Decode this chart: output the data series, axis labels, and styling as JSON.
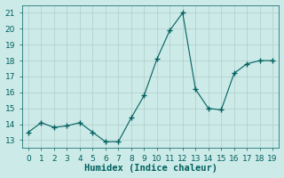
{
  "x": [
    0,
    1,
    2,
    3,
    4,
    5,
    6,
    7,
    8,
    9,
    10,
    11,
    12,
    13,
    14,
    15,
    16,
    17,
    18,
    19
  ],
  "y": [
    13.5,
    14.1,
    13.8,
    13.9,
    14.1,
    13.5,
    12.9,
    12.9,
    14.4,
    15.8,
    18.1,
    19.9,
    21.0,
    16.2,
    15.0,
    14.9,
    17.2,
    17.8,
    18.0,
    18.0
  ],
  "line_color": "#006060",
  "marker": "+",
  "bg_color": "#cceae7",
  "grid_color": "#b0ccc9",
  "xlabel": "Humidex (Indice chaleur)",
  "xlabel_fontsize": 7.5,
  "tick_color": "#006060",
  "tick_fontsize": 6.5,
  "ylim": [
    12.5,
    21.5
  ],
  "xlim": [
    -0.5,
    19.5
  ],
  "yticks": [
    13,
    14,
    15,
    16,
    17,
    18,
    19,
    20,
    21
  ],
  "xticks": [
    0,
    1,
    2,
    3,
    4,
    5,
    6,
    7,
    8,
    9,
    10,
    11,
    12,
    13,
    14,
    15,
    16,
    17,
    18,
    19
  ]
}
